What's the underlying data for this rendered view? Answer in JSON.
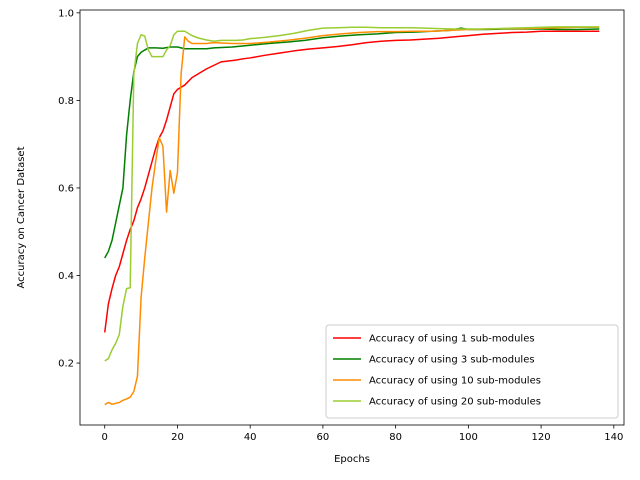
{
  "chart_data": {
    "type": "line",
    "title": "",
    "xlabel": "Epochs",
    "ylabel": "Accuracy on Cancer Dataset",
    "xlim": [
      -6.8,
      142.8
    ],
    "ylim": [
      0.0585,
      1.0065
    ],
    "xticks": [
      0,
      20,
      40,
      60,
      80,
      100,
      120,
      140
    ],
    "yticks": [
      0.2,
      0.4,
      0.6,
      0.8,
      1.0
    ],
    "xtick_labels": [
      "0",
      "20",
      "40",
      "60",
      "80",
      "100",
      "120",
      "140"
    ],
    "ytick_labels": [
      "0.2",
      "0.4",
      "0.6",
      "0.8",
      "1.0"
    ],
    "grid": false,
    "legend_position": "lower-right",
    "series": [
      {
        "name": "Accuracy of using 1 sub-modules",
        "color": "#ff0000",
        "points": [
          [
            0,
            0.27
          ],
          [
            1,
            0.335
          ],
          [
            2,
            0.37
          ],
          [
            3,
            0.4
          ],
          [
            4,
            0.42
          ],
          [
            5,
            0.45
          ],
          [
            6,
            0.48
          ],
          [
            7,
            0.505
          ],
          [
            8,
            0.525
          ],
          [
            9,
            0.555
          ],
          [
            10,
            0.575
          ],
          [
            11,
            0.6
          ],
          [
            12,
            0.63
          ],
          [
            13,
            0.66
          ],
          [
            14,
            0.69
          ],
          [
            15,
            0.715
          ],
          [
            16,
            0.73
          ],
          [
            17,
            0.755
          ],
          [
            18,
            0.785
          ],
          [
            19,
            0.815
          ],
          [
            20,
            0.825
          ],
          [
            22,
            0.835
          ],
          [
            24,
            0.852
          ],
          [
            26,
            0.862
          ],
          [
            28,
            0.872
          ],
          [
            30,
            0.88
          ],
          [
            32,
            0.888
          ],
          [
            34,
            0.89
          ],
          [
            36,
            0.892
          ],
          [
            38,
            0.895
          ],
          [
            40,
            0.897
          ],
          [
            44,
            0.903
          ],
          [
            48,
            0.908
          ],
          [
            52,
            0.913
          ],
          [
            56,
            0.917
          ],
          [
            60,
            0.92
          ],
          [
            64,
            0.923
          ],
          [
            68,
            0.927
          ],
          [
            72,
            0.932
          ],
          [
            76,
            0.935
          ],
          [
            80,
            0.937
          ],
          [
            84,
            0.938
          ],
          [
            88,
            0.94
          ],
          [
            92,
            0.942
          ],
          [
            96,
            0.945
          ],
          [
            100,
            0.948
          ],
          [
            104,
            0.951
          ],
          [
            108,
            0.953
          ],
          [
            112,
            0.955
          ],
          [
            116,
            0.956
          ],
          [
            120,
            0.958
          ],
          [
            124,
            0.958
          ],
          [
            128,
            0.958
          ],
          [
            132,
            0.958
          ],
          [
            136,
            0.958
          ]
        ]
      },
      {
        "name": "Accuracy of using 3 sub-modules",
        "color": "#008000",
        "points": [
          [
            0,
            0.44
          ],
          [
            1,
            0.455
          ],
          [
            2,
            0.48
          ],
          [
            3,
            0.52
          ],
          [
            4,
            0.56
          ],
          [
            5,
            0.6
          ],
          [
            6,
            0.72
          ],
          [
            7,
            0.8
          ],
          [
            8,
            0.865
          ],
          [
            9,
            0.9
          ],
          [
            10,
            0.91
          ],
          [
            11,
            0.915
          ],
          [
            12,
            0.92
          ],
          [
            14,
            0.92
          ],
          [
            16,
            0.919
          ],
          [
            18,
            0.922
          ],
          [
            20,
            0.922
          ],
          [
            22,
            0.918
          ],
          [
            24,
            0.918
          ],
          [
            26,
            0.918
          ],
          [
            28,
            0.918
          ],
          [
            30,
            0.92
          ],
          [
            35,
            0.922
          ],
          [
            40,
            0.926
          ],
          [
            45,
            0.93
          ],
          [
            50,
            0.933
          ],
          [
            55,
            0.937
          ],
          [
            60,
            0.943
          ],
          [
            65,
            0.947
          ],
          [
            70,
            0.95
          ],
          [
            75,
            0.952
          ],
          [
            80,
            0.955
          ],
          [
            85,
            0.956
          ],
          [
            90,
            0.958
          ],
          [
            95,
            0.96
          ],
          [
            98,
            0.965
          ],
          [
            100,
            0.962
          ],
          [
            105,
            0.962
          ],
          [
            110,
            0.963
          ],
          [
            115,
            0.963
          ],
          [
            120,
            0.963
          ],
          [
            125,
            0.962
          ],
          [
            130,
            0.962
          ],
          [
            136,
            0.963
          ]
        ]
      },
      {
        "name": "Accuracy of using 10 sub-modules",
        "color": "#ff8c00",
        "points": [
          [
            0,
            0.105
          ],
          [
            1,
            0.11
          ],
          [
            2,
            0.106
          ],
          [
            3,
            0.108
          ],
          [
            4,
            0.11
          ],
          [
            5,
            0.115
          ],
          [
            6,
            0.118
          ],
          [
            7,
            0.122
          ],
          [
            8,
            0.135
          ],
          [
            9,
            0.17
          ],
          [
            10,
            0.35
          ],
          [
            11,
            0.44
          ],
          [
            12,
            0.52
          ],
          [
            13,
            0.6
          ],
          [
            14,
            0.66
          ],
          [
            15,
            0.715
          ],
          [
            16,
            0.695
          ],
          [
            17,
            0.545
          ],
          [
            18,
            0.64
          ],
          [
            19,
            0.588
          ],
          [
            20,
            0.635
          ],
          [
            21,
            0.86
          ],
          [
            22,
            0.945
          ],
          [
            23,
            0.935
          ],
          [
            24,
            0.93
          ],
          [
            26,
            0.93
          ],
          [
            28,
            0.93
          ],
          [
            30,
            0.932
          ],
          [
            35,
            0.93
          ],
          [
            40,
            0.93
          ],
          [
            45,
            0.933
          ],
          [
            50,
            0.937
          ],
          [
            55,
            0.942
          ],
          [
            60,
            0.948
          ],
          [
            65,
            0.952
          ],
          [
            70,
            0.955
          ],
          [
            75,
            0.957
          ],
          [
            80,
            0.957
          ],
          [
            85,
            0.958
          ],
          [
            90,
            0.958
          ],
          [
            95,
            0.96
          ],
          [
            100,
            0.962
          ],
          [
            105,
            0.963
          ],
          [
            110,
            0.964
          ],
          [
            115,
            0.964
          ],
          [
            120,
            0.965
          ],
          [
            125,
            0.966
          ],
          [
            130,
            0.967
          ],
          [
            136,
            0.967
          ]
        ]
      },
      {
        "name": "Accuracy of using 20 sub-modules",
        "color": "#9acd32",
        "points": [
          [
            0,
            0.205
          ],
          [
            1,
            0.21
          ],
          [
            2,
            0.23
          ],
          [
            3,
            0.245
          ],
          [
            4,
            0.265
          ],
          [
            5,
            0.33
          ],
          [
            6,
            0.37
          ],
          [
            7,
            0.372
          ],
          [
            8,
            0.86
          ],
          [
            9,
            0.93
          ],
          [
            10,
            0.95
          ],
          [
            11,
            0.947
          ],
          [
            12,
            0.915
          ],
          [
            13,
            0.9
          ],
          [
            14,
            0.9
          ],
          [
            15,
            0.9
          ],
          [
            16,
            0.9
          ],
          [
            17,
            0.915
          ],
          [
            18,
            0.925
          ],
          [
            19,
            0.95
          ],
          [
            20,
            0.958
          ],
          [
            22,
            0.958
          ],
          [
            24,
            0.948
          ],
          [
            26,
            0.942
          ],
          [
            28,
            0.938
          ],
          [
            30,
            0.935
          ],
          [
            32,
            0.937
          ],
          [
            34,
            0.937
          ],
          [
            36,
            0.937
          ],
          [
            38,
            0.938
          ],
          [
            40,
            0.941
          ],
          [
            44,
            0.944
          ],
          [
            48,
            0.948
          ],
          [
            52,
            0.953
          ],
          [
            56,
            0.96
          ],
          [
            60,
            0.965
          ],
          [
            64,
            0.966
          ],
          [
            68,
            0.967
          ],
          [
            72,
            0.967
          ],
          [
            76,
            0.966
          ],
          [
            80,
            0.966
          ],
          [
            84,
            0.966
          ],
          [
            88,
            0.965
          ],
          [
            92,
            0.964
          ],
          [
            96,
            0.963
          ],
          [
            100,
            0.963
          ],
          [
            104,
            0.963
          ],
          [
            108,
            0.964
          ],
          [
            112,
            0.965
          ],
          [
            116,
            0.966
          ],
          [
            120,
            0.967
          ],
          [
            124,
            0.968
          ],
          [
            128,
            0.968
          ],
          [
            132,
            0.968
          ],
          [
            136,
            0.968
          ]
        ]
      }
    ]
  }
}
